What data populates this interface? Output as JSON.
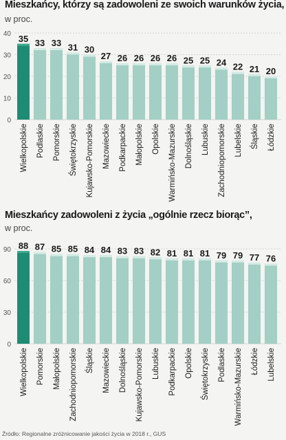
{
  "colors": {
    "highlight": "#1e8c74",
    "bar": "#a3cfc4",
    "bar_top": "#d4ebe5",
    "grid": "#c8c8c8",
    "text": "#1a1a1a"
  },
  "chart_data": [
    {
      "type": "bar",
      "title": "Mieszkańcy, którzy są zadowoleni ze swoich warunków życia,",
      "subtitle": "w proc.",
      "categories": [
        "Wielkopolskie",
        "Podlaskie",
        "Pomorskie",
        "Świętokrzyskie",
        "Kujawsko-Pomorskie",
        "Mazowieckie",
        "Podkarpackie",
        "Małopolskie",
        "Opolskie",
        "Warmińsko-Mazurskie",
        "Dolnośląskie",
        "Lubuskie",
        "Zachodniopomorskie",
        "Lubelskie",
        "Śląskie",
        "Łódzkie"
      ],
      "values": [
        35,
        33,
        33,
        31,
        30,
        27,
        26,
        26,
        26,
        26,
        25,
        25,
        24,
        22,
        21,
        20
      ],
      "highlight_index": 0,
      "yticks": [
        0,
        10,
        20,
        30,
        40
      ],
      "ylim": [
        0,
        40
      ],
      "grid": true,
      "xlabel": "",
      "ylabel": ""
    },
    {
      "type": "bar",
      "title": "Mieszkańcy zadowoleni z życia „ogólnie rzecz biorąc”,",
      "subtitle": "w proc.",
      "categories": [
        "Wielkopolskie",
        "Pomorskie",
        "Małopolskie",
        "Zachodniopomorskie",
        "Śląskie",
        "Mazowieckie",
        "Dolnośląskie",
        "Kujawsko-Pomorskie",
        "Lubuskie",
        "Podkarpackie",
        "Opolskie",
        "Świętokrzyskie",
        "Podlaskie",
        "Warmińsko-Mazurskie",
        "Łódzkie",
        "Lubelskie"
      ],
      "values": [
        88,
        87,
        85,
        85,
        84,
        84,
        83,
        83,
        82,
        81,
        81,
        81,
        79,
        79,
        77,
        76
      ],
      "highlight_index": 0,
      "yticks": [
        0,
        30,
        60,
        90
      ],
      "ylim": [
        0,
        90
      ],
      "grid": true,
      "xlabel": "",
      "ylabel": ""
    }
  ],
  "source": "Źródło: Regionalne zróżnicowanie jakości życia w 2018 r., GUS"
}
